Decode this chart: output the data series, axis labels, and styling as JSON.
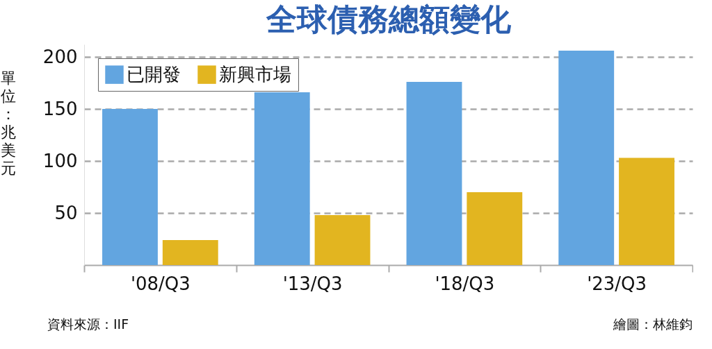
{
  "chart_data": {
    "type": "bar",
    "title": "全球債務總額變化",
    "ylabel": "單位：兆美元",
    "categories": [
      "'08/Q3",
      "'13/Q3",
      "'18/Q3",
      "'23/Q3"
    ],
    "series": [
      {
        "name": "已開發",
        "color": "#62a5e0",
        "values": [
          150,
          166,
          176,
          206
        ]
      },
      {
        "name": "新興市場",
        "color": "#e2b520",
        "values": [
          24,
          48,
          70,
          103
        ]
      }
    ],
    "ylim": [
      0,
      212
    ],
    "yticks": [
      50,
      100,
      150,
      200
    ],
    "grid": "y",
    "legend": "top left",
    "annotations": [
      "資料來源：IIF",
      "繪圖：林維鈞"
    ]
  }
}
